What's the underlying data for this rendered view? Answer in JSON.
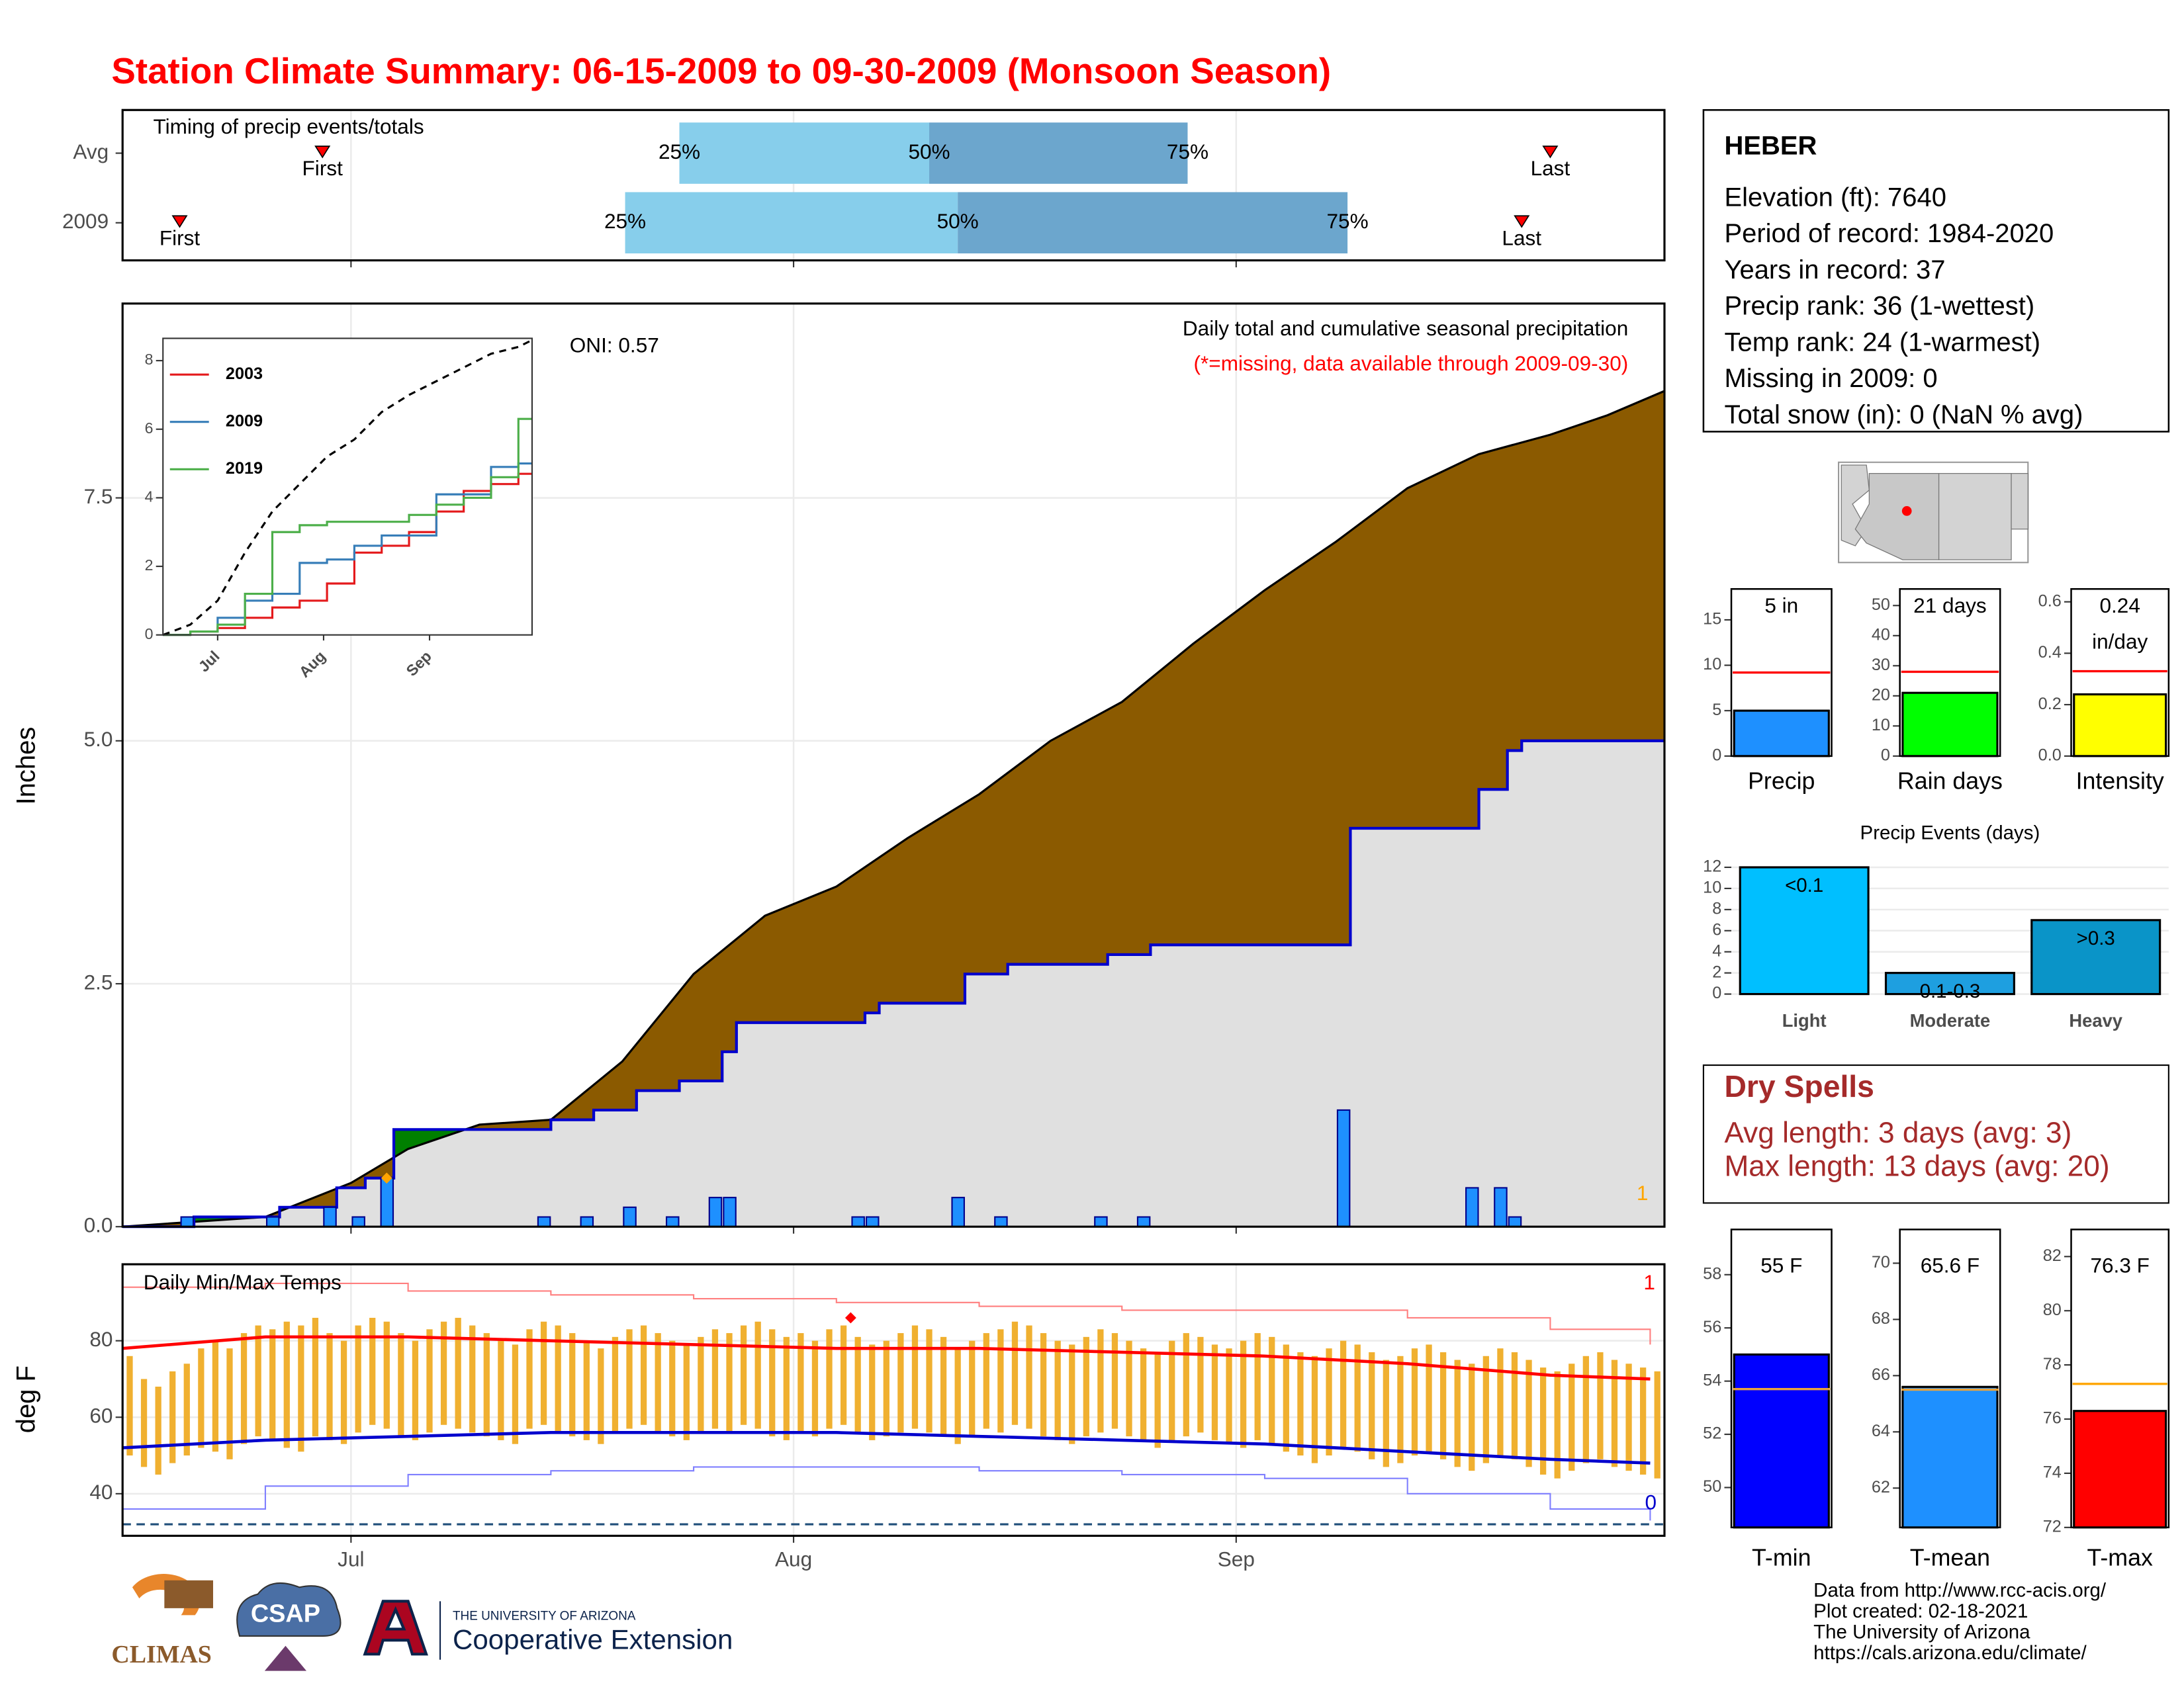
{
  "title": "Station Climate Summary: 06-15-2009 to 09-30-2009 (Monsoon Season)",
  "station": {
    "name": "HEBER",
    "lines": [
      "Elevation (ft): 7640",
      "Period of record: 1984-2020",
      "Years in record: 37",
      "Precip rank: 36 (1-wettest)",
      "Temp rank: 24 (1-warmest)",
      "Missing in 2009: 0",
      "Total snow (in): 0 (NaN % avg)"
    ]
  },
  "dry_spells": {
    "title": "Dry Spells",
    "lines": [
      "Avg length: 3 days (avg: 3)",
      "Max length: 13 days (avg: 20)"
    ]
  },
  "footer": {
    "credits": [
      "Data from http://www.rcc-acis.org/",
      "Plot created: 02-18-2021",
      "The University of Arizona",
      "https://cals.arizona.edu/climate/"
    ],
    "logos": {
      "climas": "CLIMAS",
      "csap": "CSAP",
      "university": "THE UNIVERSITY OF ARIZONA",
      "extension": "Cooperative Extension"
    }
  },
  "chart_data": [
    {
      "type": "timing",
      "title": "Timing of precip events/totals",
      "categories": [
        "Avg",
        "2009"
      ],
      "xlim": [
        0,
        108
      ],
      "labels": {
        "first": "First",
        "last": "Last",
        "q25": "25%",
        "q50": "50%",
        "q75": "75%"
      },
      "colors": [
        "#87ceeb",
        "#6ca6cd"
      ],
      "marker_color": "#ff0000",
      "series": [
        {
          "first": 14,
          "q25": 39,
          "q50": 56.5,
          "q75": 74.6,
          "last": 100
        },
        {
          "first": 4,
          "q25": 35.2,
          "q50": 58.5,
          "q75": 85.8,
          "last": 98
        }
      ]
    },
    {
      "type": "precip",
      "title": "Daily total and cumulative seasonal precipitation",
      "subtitle": "(*=missing, data available through 2009-09-30)",
      "annotation": "ONI: 0.57",
      "ylabel": "Inches",
      "xlim": [
        0,
        108
      ],
      "ylim": [
        0,
        9.5
      ],
      "yticks": [
        {
          "value": 0,
          "label": "0.0"
        },
        {
          "value": 2.5,
          "label": "2.5"
        },
        {
          "value": 5,
          "label": "5.0"
        },
        {
          "value": 7.5,
          "label": "7.5"
        }
      ],
      "grid": true,
      "daily": {
        "color": "#1e90ff",
        "x": [
          4,
          10,
          14,
          16,
          18,
          29,
          32,
          35,
          38,
          41,
          42,
          51,
          52,
          58,
          61,
          68,
          71,
          85,
          94,
          96,
          97
        ],
        "values": [
          0.1,
          0.1,
          0.2,
          0.1,
          0.5,
          0.1,
          0.1,
          0.2,
          0.1,
          0.3,
          0.3,
          0.1,
          0.1,
          0.3,
          0.1,
          0.1,
          0.1,
          1.2,
          0.4,
          0.4,
          0.1
        ]
      },
      "avg_cumulative": {
        "color": "#8b5a00",
        "x": [
          0,
          5,
          10,
          16,
          20,
          25,
          30,
          35,
          40,
          45,
          50,
          55,
          60,
          65,
          70,
          75,
          80,
          85,
          90,
          95,
          100,
          104,
          108
        ],
        "values": [
          0,
          0.05,
          0.1,
          0.45,
          0.8,
          1.05,
          1.1,
          1.7,
          2.6,
          3.2,
          3.5,
          4.0,
          4.45,
          5.0,
          5.4,
          6.0,
          6.55,
          7.05,
          7.6,
          7.95,
          8.15,
          8.35,
          8.6
        ]
      },
      "colors": {
        "above": "#008000",
        "below": "#e0e0e0",
        "line": "#0000cd"
      },
      "marker": {
        "x": 18,
        "value": 0.5,
        "color": "#ffa500"
      },
      "count": 1,
      "inset": {
        "xlim": [
          0,
          108
        ],
        "ylim": [
          0,
          8.65
        ],
        "yticks": [
          0,
          2,
          4,
          6,
          8
        ],
        "x": [
          0,
          8,
          16,
          24,
          32,
          40,
          48,
          56,
          64,
          72,
          80,
          88,
          96,
          104,
          108
        ],
        "avg": [
          0,
          0.3,
          1.0,
          2.4,
          3.6,
          4.4,
          5.2,
          5.7,
          6.5,
          7.0,
          7.4,
          7.8,
          8.2,
          8.4,
          8.6
        ],
        "series": [
          {
            "name": "2003",
            "color": "#e41a1c",
            "values": [
              0,
              0.1,
              0.2,
              0.5,
              0.8,
              1.0,
              1.5,
              2.4,
              2.6,
              3.0,
              3.6,
              4.2,
              4.4,
              4.7,
              4.7
            ]
          },
          {
            "name": "2009",
            "color": "#377eb8",
            "values": [
              0,
              0.1,
              0.5,
              1.0,
              1.2,
              2.1,
              2.2,
              2.6,
              2.9,
              2.9,
              4.1,
              4.1,
              4.9,
              5.0,
              5.0
            ]
          },
          {
            "name": "2019",
            "color": "#4daf4a",
            "values": [
              0,
              0.1,
              0.3,
              1.2,
              3.0,
              3.2,
              3.3,
              3.3,
              3.3,
              3.5,
              3.8,
              4.0,
              4.6,
              6.3,
              6.3
            ]
          }
        ]
      }
    },
    {
      "type": "temps",
      "title": "Daily Min/Max Temps",
      "ylabel": "deg F",
      "xlim": [
        0,
        108
      ],
      "ylim": [
        29,
        100
      ],
      "yticks": [
        40,
        60,
        80
      ],
      "xticks": [
        {
          "value": 16,
          "label": "Jul"
        },
        {
          "value": 47,
          "label": "Aug"
        },
        {
          "value": 78,
          "label": "Sep"
        }
      ],
      "grid": true,
      "bar_color": "#f0b030",
      "daily_max": [
        76,
        70,
        68,
        72,
        74,
        78,
        80,
        78,
        82,
        84,
        83,
        85,
        84,
        86,
        82,
        80,
        84,
        86,
        85,
        82,
        80,
        83,
        85,
        86,
        84,
        82,
        80,
        79,
        83,
        85,
        84,
        82,
        80,
        78,
        81,
        83,
        84,
        82,
        80,
        79,
        81,
        83,
        82,
        84,
        85,
        83,
        81,
        82,
        80,
        83,
        84,
        81,
        79,
        80,
        82,
        84,
        83,
        81,
        78,
        80,
        82,
        83,
        85,
        84,
        82,
        80,
        79,
        81,
        83,
        82,
        80,
        78,
        77,
        80,
        82,
        81,
        79,
        78,
        80,
        82,
        81,
        79,
        77,
        76,
        78,
        80,
        79,
        77,
        75,
        76,
        78,
        79,
        77,
        75,
        74,
        76,
        78,
        77,
        75,
        73,
        72,
        74,
        76,
        77,
        75,
        74,
        73,
        72
      ],
      "daily_min": [
        50,
        47,
        45,
        48,
        50,
        52,
        51,
        49,
        53,
        55,
        54,
        52,
        51,
        55,
        54,
        53,
        56,
        58,
        57,
        55,
        54,
        56,
        58,
        57,
        56,
        55,
        54,
        53,
        57,
        58,
        56,
        55,
        54,
        53,
        56,
        57,
        58,
        56,
        55,
        54,
        56,
        57,
        56,
        58,
        57,
        55,
        54,
        56,
        55,
        57,
        58,
        56,
        54,
        55,
        56,
        57,
        56,
        55,
        53,
        55,
        57,
        56,
        58,
        57,
        55,
        54,
        53,
        55,
        56,
        57,
        55,
        54,
        52,
        54,
        55,
        56,
        54,
        53,
        52,
        54,
        53,
        51,
        50,
        48,
        50,
        52,
        51,
        49,
        47,
        48,
        50,
        51,
        49,
        47,
        46,
        48,
        50,
        49,
        47,
        45,
        44,
        46,
        48,
        49,
        47,
        46,
        45,
        44
      ],
      "x": [
        0,
        10,
        20,
        30,
        40,
        50,
        60,
        70,
        80,
        90,
        100,
        107
      ],
      "lines": [
        {
          "style": "thin",
          "color": "#ff7f7f",
          "values": [
            94,
            95,
            93,
            92,
            91,
            90,
            89,
            88,
            88,
            86,
            83,
            79
          ]
        },
        {
          "style": "thick",
          "color": "#ff0000",
          "values": [
            78,
            81,
            81,
            80,
            79,
            78,
            78,
            77,
            76,
            74,
            71,
            70
          ]
        },
        {
          "style": "thick",
          "color": "#0000cd",
          "values": [
            52,
            54,
            55,
            56,
            56,
            56,
            55,
            54,
            53,
            51,
            49,
            48
          ]
        },
        {
          "style": "thin",
          "color": "#7f7fff",
          "values": [
            36,
            42,
            45,
            46,
            47,
            47,
            46,
            45,
            44,
            40,
            36,
            33
          ]
        }
      ],
      "freeze_line": 32,
      "freeze_color": "#1f4e79",
      "record_marker": {
        "x": 51,
        "value": 86,
        "color": "#ff0000"
      },
      "record_high_count": 1,
      "record_low_count": 0
    },
    {
      "type": "summary_bar",
      "category": "Precip",
      "value": 5,
      "value_label": "5 in",
      "avg": 9.2,
      "avg_color": "#ff0000",
      "color": "#1e90ff",
      "ylim": [
        0,
        18.4
      ],
      "yticks": [
        0,
        5,
        10,
        15
      ]
    },
    {
      "type": "summary_bar",
      "category": "Rain days",
      "value": 21,
      "value_label": "21 days",
      "avg": 28,
      "avg_color": "#ff0000",
      "color": "#00ff00",
      "ylim": [
        0,
        55.5
      ],
      "yticks": [
        0,
        10,
        20,
        30,
        40,
        50
      ]
    },
    {
      "type": "summary_bar",
      "category": "Intensity",
      "value": 0.24,
      "value_label": "0.24",
      "unit_label": "in/day",
      "avg": 0.33,
      "avg_color": "#ff0000",
      "color": "#ffff00",
      "ylim": [
        0,
        0.65
      ],
      "yticks": [
        {
          "value": 0,
          "label": "0.0"
        },
        {
          "value": 0.2,
          "label": "0.2"
        },
        {
          "value": 0.4,
          "label": "0.4"
        },
        {
          "value": 0.6,
          "label": "0.6"
        }
      ]
    },
    {
      "type": "bar",
      "title": "Precip Events (days)",
      "categories": [
        "Light",
        "Moderate",
        "Heavy"
      ],
      "values": [
        12,
        2,
        7
      ],
      "bar_labels": [
        "<0.1",
        "0.1-0.3",
        ">0.3"
      ],
      "colors": [
        "#00bfff",
        "#1e9fe0",
        "#0a94c8"
      ],
      "ylim": [
        -0.8,
        13.7
      ],
      "yticks": [
        0,
        2,
        4,
        6,
        8,
        10,
        12
      ],
      "grid": true
    },
    {
      "type": "summary_bar",
      "category": "T-min",
      "value": 55,
      "value_label": "55 F",
      "avg": 53.7,
      "avg_color": "#e8a33d",
      "color": "#0000ff",
      "ylim": [
        48.5,
        59.7
      ],
      "yticks": [
        50,
        52,
        54,
        56,
        58
      ]
    },
    {
      "type": "summary_bar",
      "category": "T-mean",
      "value": 65.6,
      "value_label": "65.6 F",
      "avg": 65.5,
      "avg_color": "#e8a33d",
      "color": "#1e90ff",
      "ylim": [
        60.6,
        71.2
      ],
      "yticks": [
        62,
        64,
        66,
        68,
        70
      ]
    },
    {
      "type": "summary_bar",
      "category": "T-max",
      "value": 76.3,
      "value_label": "76.3 F",
      "avg": 77.3,
      "avg_color": "#ffa500",
      "color": "#ff0000",
      "ylim": [
        72,
        83
      ],
      "yticks": [
        72,
        74,
        76,
        78,
        80,
        82
      ]
    }
  ]
}
